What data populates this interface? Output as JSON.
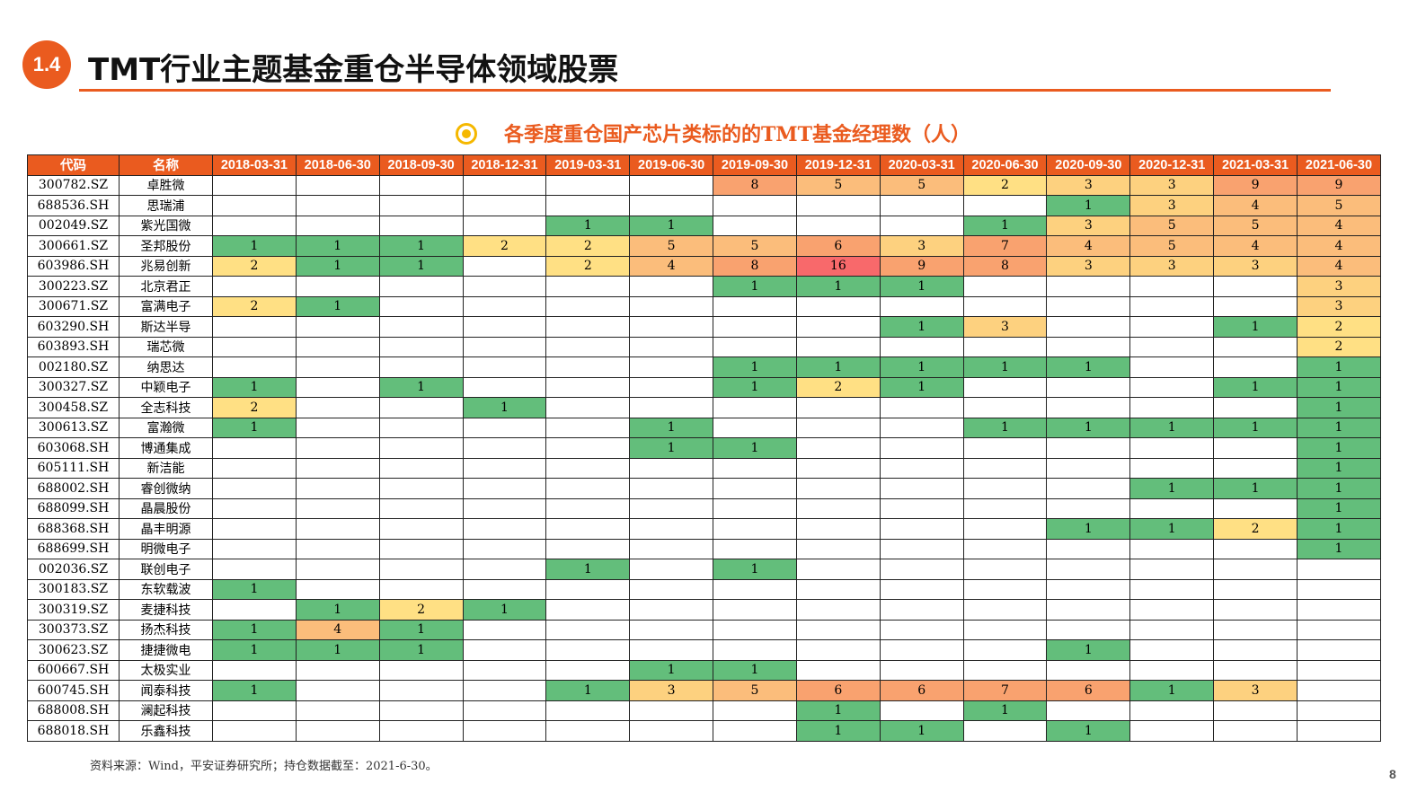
{
  "header": {
    "badge": "1.4",
    "title": "TMT行业主题基金重仓半导体领域股票"
  },
  "subtitle": "各季度重仓国产芯片类标的的TMT基金经理数（人）",
  "table": {
    "headers": [
      "代码",
      "名称",
      "2018-03-31",
      "2018-06-30",
      "2018-09-30",
      "2018-12-31",
      "2019-03-31",
      "2019-06-30",
      "2019-09-30",
      "2019-12-31",
      "2020-03-31",
      "2020-06-30",
      "2020-09-30",
      "2020-12-31",
      "2021-03-31",
      "2021-06-30"
    ],
    "rows": [
      {
        "code": "300782.SZ",
        "name": "卓胜微",
        "values": [
          null,
          null,
          null,
          null,
          null,
          null,
          8,
          5,
          5,
          2,
          3,
          3,
          9,
          9
        ]
      },
      {
        "code": "688536.SH",
        "name": "思瑞浦",
        "values": [
          null,
          null,
          null,
          null,
          null,
          null,
          null,
          null,
          null,
          null,
          1,
          3,
          4,
          5
        ]
      },
      {
        "code": "002049.SZ",
        "name": "紫光国微",
        "values": [
          null,
          null,
          null,
          null,
          1,
          1,
          null,
          null,
          null,
          1,
          3,
          5,
          5,
          4
        ]
      },
      {
        "code": "300661.SZ",
        "name": "圣邦股份",
        "values": [
          1,
          1,
          1,
          2,
          2,
          5,
          5,
          6,
          3,
          7,
          4,
          5,
          4,
          4
        ]
      },
      {
        "code": "603986.SH",
        "name": "兆易创新",
        "values": [
          2,
          1,
          1,
          null,
          2,
          4,
          8,
          16,
          9,
          8,
          3,
          3,
          3,
          4
        ]
      },
      {
        "code": "300223.SZ",
        "name": "北京君正",
        "values": [
          null,
          null,
          null,
          null,
          null,
          null,
          1,
          1,
          1,
          null,
          null,
          null,
          null,
          3
        ]
      },
      {
        "code": "300671.SZ",
        "name": "富满电子",
        "values": [
          2,
          1,
          null,
          null,
          null,
          null,
          null,
          null,
          null,
          null,
          null,
          null,
          null,
          3
        ]
      },
      {
        "code": "603290.SH",
        "name": "斯达半导",
        "values": [
          null,
          null,
          null,
          null,
          null,
          null,
          null,
          null,
          1,
          3,
          null,
          null,
          1,
          2
        ]
      },
      {
        "code": "603893.SH",
        "name": "瑞芯微",
        "values": [
          null,
          null,
          null,
          null,
          null,
          null,
          null,
          null,
          null,
          null,
          null,
          null,
          null,
          2
        ]
      },
      {
        "code": "002180.SZ",
        "name": "纳思达",
        "values": [
          null,
          null,
          null,
          null,
          null,
          null,
          1,
          1,
          1,
          1,
          1,
          null,
          null,
          1
        ]
      },
      {
        "code": "300327.SZ",
        "name": "中颖电子",
        "values": [
          1,
          null,
          1,
          null,
          null,
          null,
          1,
          2,
          1,
          null,
          null,
          null,
          1,
          1
        ]
      },
      {
        "code": "300458.SZ",
        "name": "全志科技",
        "values": [
          2,
          null,
          null,
          1,
          null,
          null,
          null,
          null,
          null,
          null,
          null,
          null,
          null,
          1
        ]
      },
      {
        "code": "300613.SZ",
        "name": "富瀚微",
        "values": [
          1,
          null,
          null,
          null,
          null,
          1,
          null,
          null,
          null,
          1,
          1,
          1,
          1,
          1
        ]
      },
      {
        "code": "603068.SH",
        "name": "博通集成",
        "values": [
          null,
          null,
          null,
          null,
          null,
          1,
          1,
          null,
          null,
          null,
          null,
          null,
          null,
          1
        ]
      },
      {
        "code": "605111.SH",
        "name": "新洁能",
        "values": [
          null,
          null,
          null,
          null,
          null,
          null,
          null,
          null,
          null,
          null,
          null,
          null,
          null,
          1
        ]
      },
      {
        "code": "688002.SH",
        "name": "睿创微纳",
        "values": [
          null,
          null,
          null,
          null,
          null,
          null,
          null,
          null,
          null,
          null,
          null,
          1,
          1,
          1
        ]
      },
      {
        "code": "688099.SH",
        "name": "晶晨股份",
        "values": [
          null,
          null,
          null,
          null,
          null,
          null,
          null,
          null,
          null,
          null,
          null,
          null,
          null,
          1
        ]
      },
      {
        "code": "688368.SH",
        "name": "晶丰明源",
        "values": [
          null,
          null,
          null,
          null,
          null,
          null,
          null,
          null,
          null,
          null,
          1,
          1,
          2,
          1
        ]
      },
      {
        "code": "688699.SH",
        "name": "明微电子",
        "values": [
          null,
          null,
          null,
          null,
          null,
          null,
          null,
          null,
          null,
          null,
          null,
          null,
          null,
          1
        ]
      },
      {
        "code": "002036.SZ",
        "name": "联创电子",
        "values": [
          null,
          null,
          null,
          null,
          1,
          null,
          1,
          null,
          null,
          null,
          null,
          null,
          null,
          null
        ]
      },
      {
        "code": "300183.SZ",
        "name": "东软载波",
        "values": [
          1,
          null,
          null,
          null,
          null,
          null,
          null,
          null,
          null,
          null,
          null,
          null,
          null,
          null
        ]
      },
      {
        "code": "300319.SZ",
        "name": "麦捷科技",
        "values": [
          null,
          1,
          2,
          1,
          null,
          null,
          null,
          null,
          null,
          null,
          null,
          null,
          null,
          null
        ]
      },
      {
        "code": "300373.SZ",
        "name": "扬杰科技",
        "values": [
          1,
          4,
          1,
          null,
          null,
          null,
          null,
          null,
          null,
          null,
          null,
          null,
          null,
          null
        ]
      },
      {
        "code": "300623.SZ",
        "name": "捷捷微电",
        "values": [
          1,
          1,
          1,
          null,
          null,
          null,
          null,
          null,
          null,
          null,
          1,
          null,
          null,
          null
        ]
      },
      {
        "code": "600667.SH",
        "name": "太极实业",
        "values": [
          null,
          null,
          null,
          null,
          null,
          1,
          1,
          null,
          null,
          null,
          null,
          null,
          null,
          null
        ]
      },
      {
        "code": "600745.SH",
        "name": "闻泰科技",
        "values": [
          1,
          null,
          null,
          null,
          1,
          3,
          5,
          6,
          6,
          7,
          6,
          1,
          3,
          null
        ]
      },
      {
        "code": "688008.SH",
        "name": "澜起科技",
        "values": [
          null,
          null,
          null,
          null,
          null,
          null,
          null,
          1,
          null,
          1,
          null,
          null,
          null,
          null
        ]
      },
      {
        "code": "688018.SH",
        "name": "乐鑫科技",
        "values": [
          null,
          null,
          null,
          null,
          null,
          null,
          null,
          1,
          1,
          null,
          1,
          null,
          null,
          null
        ]
      }
    ]
  },
  "footnote": "资料来源：Wind，平安证券研究所；持仓数据截至：2021-6-30。",
  "page_number": "8"
}
